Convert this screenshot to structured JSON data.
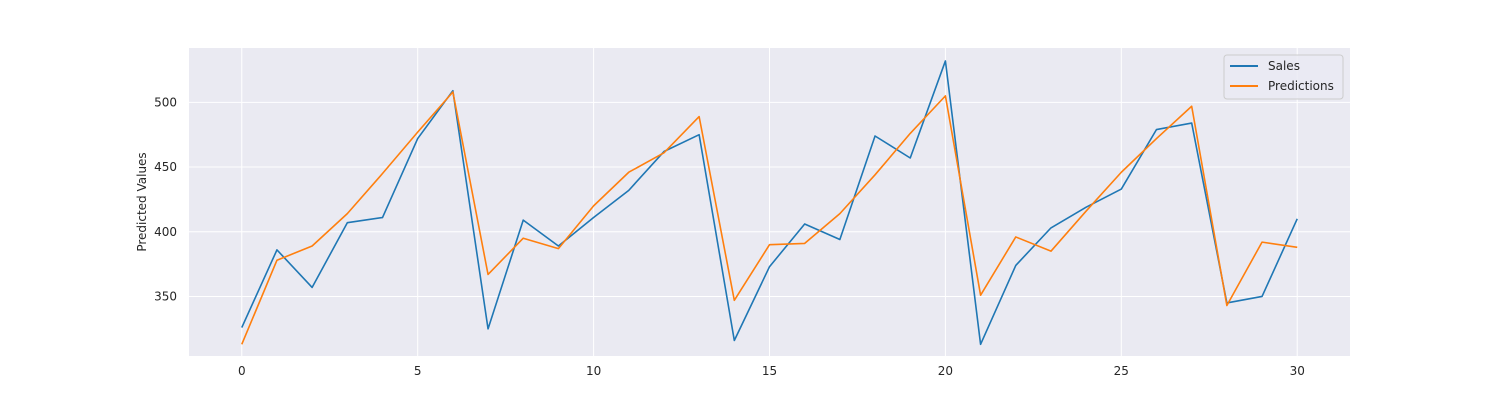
{
  "chart_data": {
    "type": "line",
    "title": "",
    "xlabel": "",
    "ylabel": "Predicted Values",
    "x": [
      0,
      1,
      2,
      3,
      4,
      5,
      6,
      7,
      8,
      9,
      10,
      11,
      12,
      13,
      14,
      15,
      16,
      17,
      18,
      19,
      20,
      21,
      22,
      23,
      24,
      25,
      26,
      27,
      28,
      29,
      30
    ],
    "xlim": [
      -1.5,
      31.5
    ],
    "ylim": [
      304,
      542
    ],
    "xticks": [
      0,
      5,
      10,
      15,
      20,
      25,
      30
    ],
    "yticks": [
      350,
      400,
      450,
      500
    ],
    "grid": true,
    "legend_position": "top-right",
    "series": [
      {
        "name": "Sales",
        "color": "#1f77b4",
        "values": [
          326,
          386,
          357,
          407,
          411,
          472,
          509,
          325,
          409,
          389,
          411,
          432,
          462,
          475,
          316,
          373,
          406,
          394,
          474,
          457,
          532,
          313,
          374,
          403,
          419,
          433,
          479,
          484,
          345,
          350,
          410
        ]
      },
      {
        "name": "Predictions",
        "color": "#ff7f0e",
        "values": [
          313,
          378,
          389,
          414,
          445,
          477,
          508,
          367,
          395,
          387,
          420,
          446,
          461,
          489,
          347,
          390,
          391,
          414,
          444,
          476,
          505,
          351,
          396,
          385,
          416,
          446,
          472,
          497,
          343,
          392,
          388
        ]
      }
    ]
  }
}
